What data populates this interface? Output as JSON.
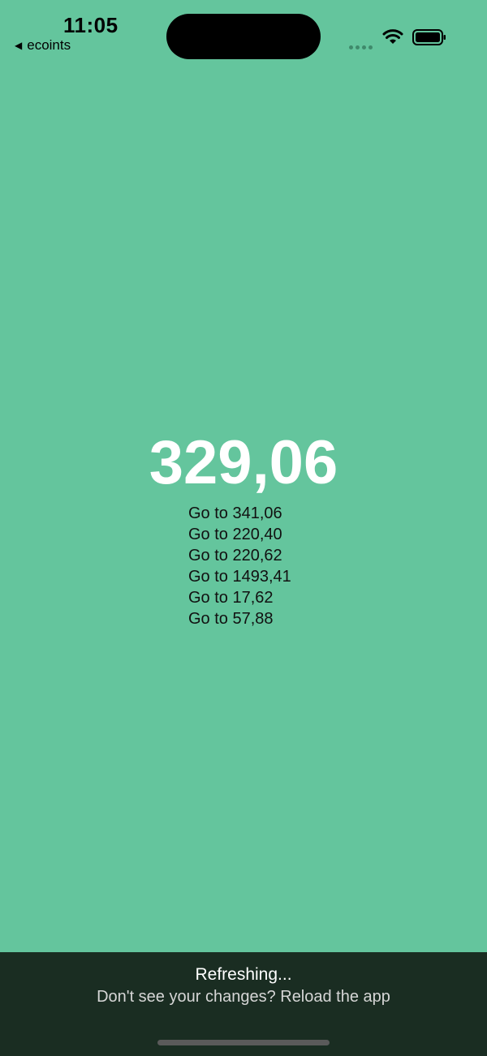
{
  "status_bar": {
    "time": "11:05",
    "back_app_label": "ecoints"
  },
  "main": {
    "amount": "329,06",
    "go_items": [
      "Go to 341,06",
      "Go to 220,40",
      "Go to 220,62",
      "Go to 1493,41",
      "Go to 17,62",
      "Go to 57,88"
    ]
  },
  "refresh_banner": {
    "title": "Refreshing...",
    "subtitle": "Don't see your changes? Reload the app"
  },
  "colors": {
    "background": "#64c59d",
    "banner": "#1a2d22"
  }
}
